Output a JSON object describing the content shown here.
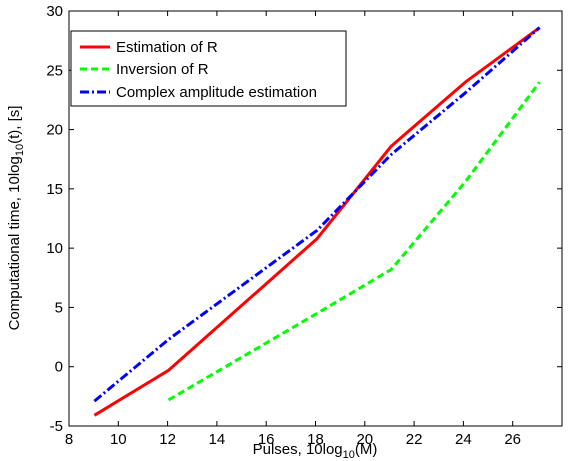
{
  "chart_data": {
    "type": "line",
    "xlabel": {
      "main": "Pulses, 10log",
      "sub": "10",
      "tail": "(M)"
    },
    "ylabel": {
      "main": "Computational time, 10log",
      "sub": "10",
      "tail": "(t), [s]"
    },
    "xlim": [
      8,
      28
    ],
    "ylim": [
      -5,
      30
    ],
    "xticks": [
      8,
      10,
      12,
      14,
      16,
      18,
      20,
      22,
      24,
      26
    ],
    "yticks": [
      -5,
      0,
      5,
      10,
      15,
      20,
      25,
      30
    ],
    "grid": false,
    "legend_position": "top-left",
    "series": [
      {
        "name": "Estimation of R",
        "color": "#ff0000",
        "dash": "solid",
        "x": [
          9.03,
          12.04,
          18.06,
          21.07,
          24.08,
          27.09
        ],
        "y": [
          -4.1,
          -0.3,
          10.8,
          18.6,
          24.0,
          28.6
        ]
      },
      {
        "name": "Inversion of R",
        "color": "#00ff00",
        "dash": "dashed",
        "x": [
          12.04,
          18.06,
          21.07,
          24.08,
          27.09
        ],
        "y": [
          -2.8,
          4.5,
          8.2,
          15.6,
          24.0
        ]
      },
      {
        "name": "Complex amplitude estimation",
        "color": "#0000ff",
        "dash": "dashdot",
        "x": [
          9.03,
          12.04,
          18.06,
          21.07,
          24.08,
          27.09
        ],
        "y": [
          -2.9,
          2.3,
          11.5,
          17.9,
          23.1,
          28.6
        ]
      }
    ]
  }
}
